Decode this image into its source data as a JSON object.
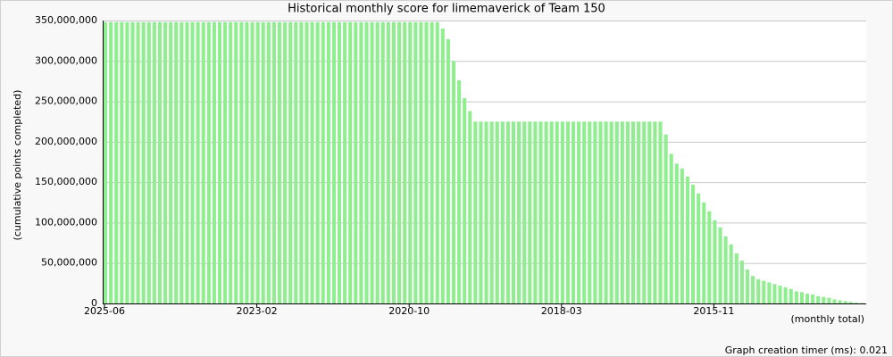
{
  "chart_data": {
    "type": "bar",
    "title": "Historical monthly score for limemaverick of Team 150",
    "y_label": "(cumulative points completed)",
    "x_label": "(monthly total)",
    "footer": "Graph creation timer (ms): 0.021",
    "color": "#90ee90",
    "grid": true,
    "categories": [
      "2025-06",
      null,
      null,
      null,
      null,
      null,
      null,
      null,
      null,
      null,
      null,
      null,
      null,
      null,
      null,
      null,
      null,
      null,
      null,
      null,
      null,
      null,
      null,
      null,
      null,
      null,
      null,
      null,
      "2023-02",
      null,
      null,
      null,
      null,
      null,
      null,
      null,
      null,
      null,
      null,
      null,
      null,
      null,
      null,
      null,
      null,
      null,
      null,
      null,
      null,
      null,
      null,
      null,
      null,
      null,
      null,
      null,
      "2020-10",
      null,
      null,
      null,
      null,
      null,
      null,
      null,
      null,
      null,
      null,
      null,
      null,
      null,
      null,
      null,
      null,
      null,
      null,
      null,
      null,
      null,
      null,
      null,
      null,
      null,
      null,
      null,
      "2018-03",
      null,
      null,
      null,
      null,
      null,
      null,
      null,
      null,
      null,
      null,
      null,
      null,
      null,
      null,
      null,
      null,
      null,
      null,
      null,
      null,
      null,
      null,
      null,
      null,
      null,
      null,
      null,
      "2015-11",
      null,
      null,
      null,
      null,
      null,
      null,
      null,
      null,
      null,
      null,
      null,
      null,
      null,
      null,
      null,
      null,
      null,
      null,
      null,
      null,
      null,
      null,
      null,
      null,
      null,
      null,
      null
    ],
    "values": [
      348000000,
      348000000,
      348000000,
      348000000,
      348000000,
      348000000,
      348000000,
      348000000,
      348000000,
      348000000,
      348000000,
      348000000,
      348000000,
      348000000,
      348000000,
      348000000,
      348000000,
      348000000,
      348000000,
      348000000,
      348000000,
      348000000,
      348000000,
      348000000,
      348000000,
      348000000,
      348000000,
      348000000,
      348000000,
      348000000,
      348000000,
      348000000,
      348000000,
      348000000,
      348000000,
      348000000,
      348000000,
      348000000,
      348000000,
      348000000,
      348000000,
      348000000,
      348000000,
      348000000,
      348000000,
      348000000,
      348000000,
      348000000,
      348000000,
      348000000,
      348000000,
      348000000,
      348000000,
      348000000,
      348000000,
      348000000,
      348000000,
      348000000,
      348000000,
      348000000,
      348000000,
      348000000,
      340000000,
      327000000,
      300000000,
      276000000,
      254000000,
      238000000,
      225000000,
      225000000,
      225000000,
      225000000,
      225000000,
      225000000,
      225000000,
      225000000,
      225000000,
      225000000,
      225000000,
      225000000,
      225000000,
      225000000,
      225000000,
      225000000,
      225000000,
      225000000,
      225000000,
      225000000,
      225000000,
      225000000,
      225000000,
      225000000,
      225000000,
      225000000,
      225000000,
      225000000,
      225000000,
      225000000,
      225000000,
      225000000,
      225000000,
      225000000,
      225000000,
      209000000,
      185000000,
      173000000,
      167000000,
      157000000,
      147000000,
      136000000,
      125000000,
      114000000,
      103000000,
      94000000,
      83000000,
      73000000,
      62000000,
      53000000,
      42000000,
      34000000,
      30000000,
      28000000,
      26000000,
      24000000,
      22000000,
      20000000,
      18000000,
      15000000,
      14000000,
      12000000,
      11000000,
      9000000,
      8000000,
      7000000,
      5000000,
      4000000,
      3000000,
      2000000,
      1000000,
      500000
    ],
    "ylim": [
      0,
      350000000
    ],
    "yticks": [
      0,
      {
        "value": 50000000,
        "label": "50,000,000"
      },
      {
        "value": 100000000,
        "label": "100,000,000"
      },
      {
        "value": 150000000,
        "label": "150,000,000"
      },
      {
        "value": 200000000,
        "label": "200,000,000"
      },
      {
        "value": 250000000,
        "label": "250,000,000"
      },
      {
        "value": 300000000,
        "label": "300,000,000"
      },
      {
        "value": 350000000,
        "label": "350,000,000"
      }
    ]
  }
}
